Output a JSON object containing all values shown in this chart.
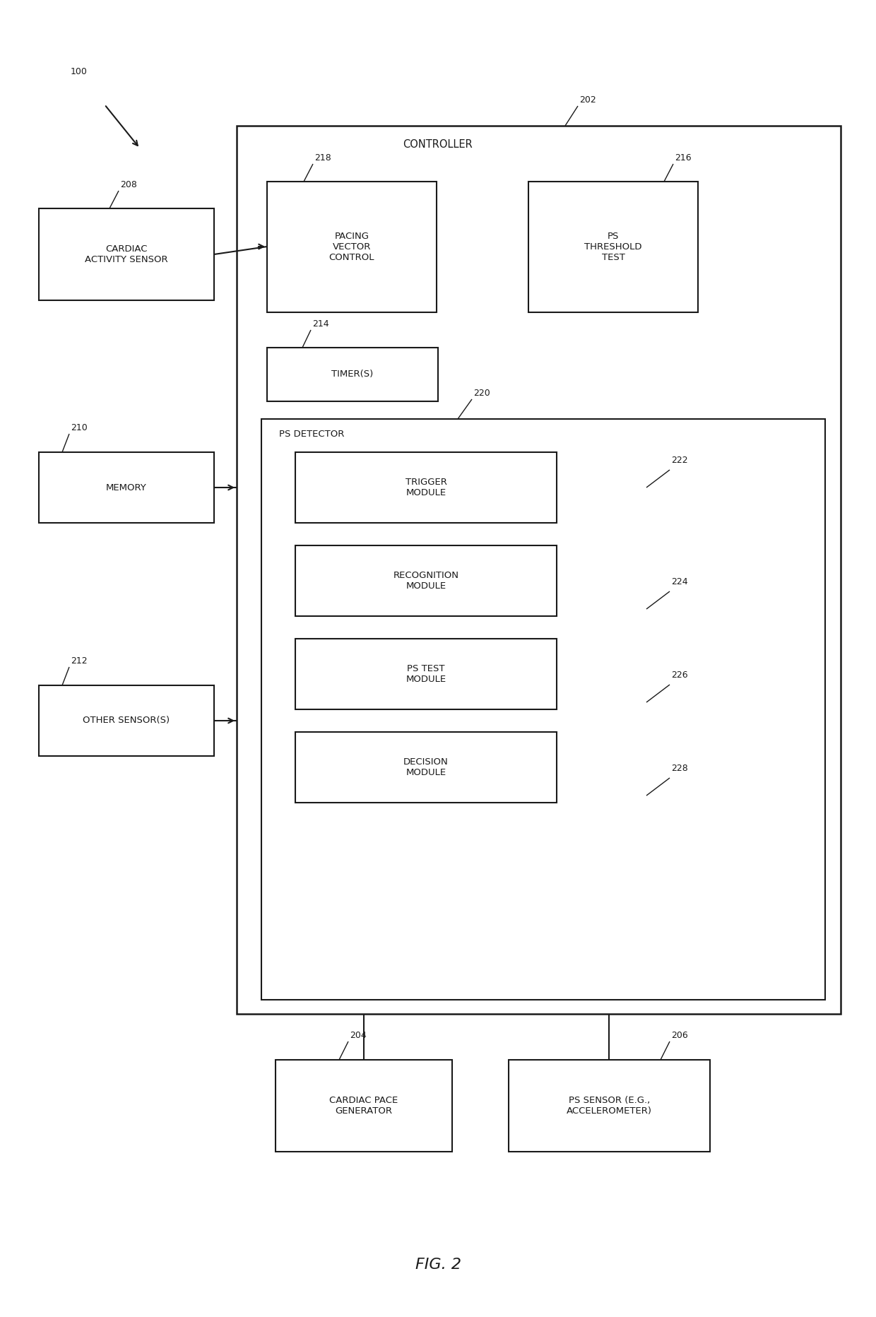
{
  "fig_label": "FIG. 2",
  "ref_100": "100",
  "ref_202": "202",
  "ref_204": "204",
  "ref_206": "206",
  "ref_208": "208",
  "ref_210": "210",
  "ref_212": "212",
  "ref_214": "214",
  "ref_216": "216",
  "ref_218": "218",
  "ref_220": "220",
  "ref_222": "222",
  "ref_224": "224",
  "ref_226": "226",
  "ref_228": "228",
  "box_208_label": "CARDIAC\nACTIVITY SENSOR",
  "box_210_label": "MEMORY",
  "box_212_label": "OTHER SENSOR(S)",
  "box_204_label": "CARDIAC PACE\nGENERATOR",
  "box_206_label": "PS SENSOR (E.G.,\nACCELEROMETER)",
  "controller_label": "CONTROLLER",
  "box_218_label": "PACING\nVECTOR\nCONTROL",
  "box_216_label": "PS\nTHRESHOLD\nTEST",
  "box_214_label": "TIMER(S)",
  "ps_detector_label": "PS DETECTOR",
  "box_222_label": "TRIGGER\nMODULE",
  "box_224_label": "RECOGNITION\nMODULE",
  "box_226_label": "PS TEST\nMODULE",
  "box_228_label": "DECISION\nMODULE",
  "bg_color": "#ffffff",
  "box_edge_color": "#1a1a1a",
  "text_color": "#1a1a1a",
  "line_color": "#1a1a1a",
  "font_size": 9.5,
  "ref_font_size": 9,
  "fig_label_font_size": 16
}
